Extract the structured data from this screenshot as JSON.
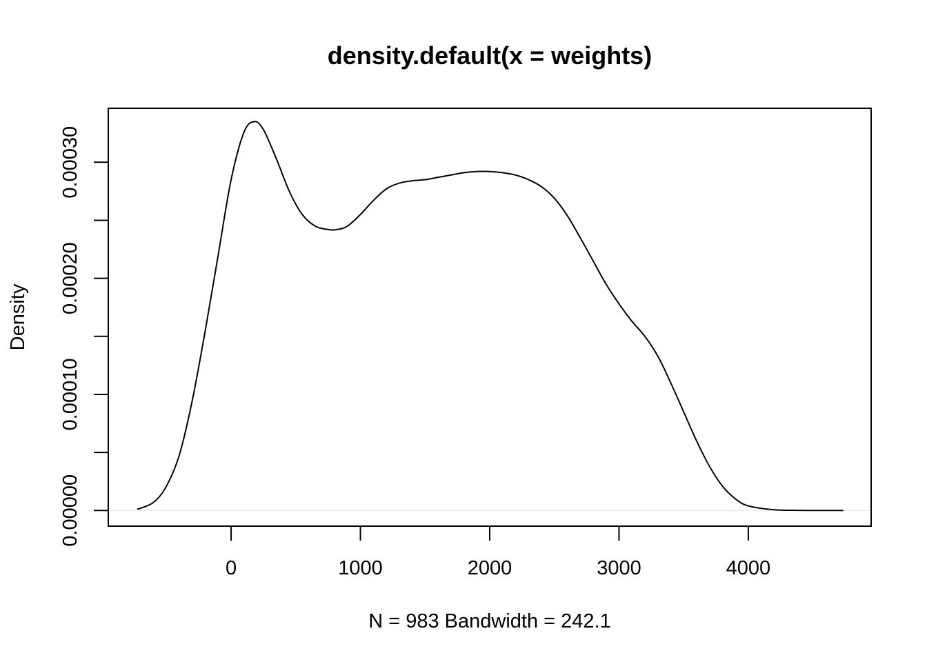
{
  "chart_data": {
    "type": "line",
    "title": "density.default(x = weights)",
    "xlabel": "N = 983   Bandwidth = 242.1",
    "ylabel": "Density",
    "xlim": [
      -950,
      4950
    ],
    "ylim": [
      -1.35e-05,
      0.0003465
    ],
    "x_ticks": [
      0,
      1000,
      2000,
      3000,
      4000
    ],
    "x_tick_labels": [
      "0",
      "1000",
      "2000",
      "3000",
      "4000"
    ],
    "y_ticks": [
      0,
      5e-05,
      0.0001,
      0.00015,
      0.0002,
      0.00025,
      0.0003
    ],
    "y_tick_labels": [
      "0.00000",
      "",
      "0.00010",
      "",
      "0.00020",
      "",
      "0.00030"
    ],
    "grid": false,
    "legend": "none",
    "series": [
      {
        "x": [
          -726,
          -600,
          -500,
          -400,
          -300,
          -200,
          -100,
          0,
          100,
          180,
          250,
          350,
          450,
          550,
          650,
          750,
          820,
          900,
          1000,
          1100,
          1200,
          1300,
          1400,
          1500,
          1600,
          1700,
          1800,
          1900,
          2000,
          2100,
          2200,
          2300,
          2400,
          2500,
          2600,
          2700,
          2800,
          2900,
          3000,
          3100,
          3200,
          3300,
          3400,
          3500,
          3600,
          3700,
          3800,
          3900,
          4000,
          4200,
          4400,
          4600,
          4735
        ],
        "y": [
          1e-06,
          7e-06,
          2.1e-05,
          4.8e-05,
          9.5e-05,
          0.000155,
          0.00022,
          0.000285,
          0.000326,
          0.000335,
          0.000328,
          0.000303,
          0.000275,
          0.000255,
          0.000245,
          0.000242,
          0.000242,
          0.000245,
          0.000255,
          0.000267,
          0.000277,
          0.000282,
          0.000284,
          0.000285,
          0.000287,
          0.000289,
          0.000291,
          0.000292,
          0.000292,
          0.000291,
          0.000289,
          0.000285,
          0.000279,
          0.000269,
          0.000254,
          0.000235,
          0.000215,
          0.000195,
          0.000178,
          0.000163,
          0.00015,
          0.000133,
          0.00011,
          8.5e-05,
          6e-05,
          3.8e-05,
          2.1e-05,
          1e-05,
          4e-06,
          6e-07,
          1e-07,
          0.0,
          0.0
        ]
      }
    ]
  }
}
